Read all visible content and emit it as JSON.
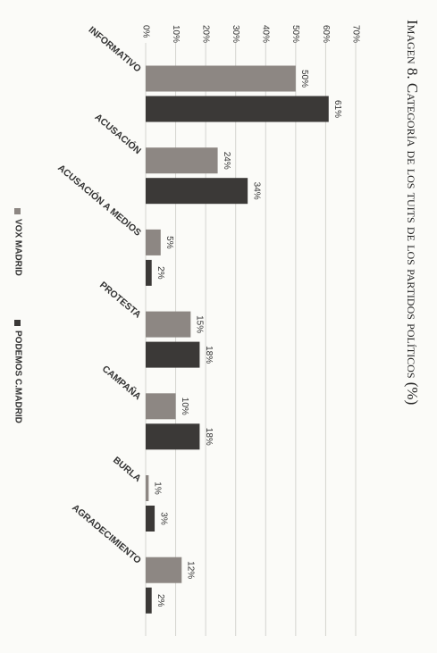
{
  "chart_data": {
    "type": "bar",
    "title": "Imagen 8. Categoría de los tuits de los partidos políticos (%)",
    "categories": [
      "INFORMATIVO",
      "ACUSACIÓN",
      "ACUSACIÓN A MEDIOS",
      "PROTESTA",
      "CAMPAÑA",
      "BURLA",
      "AGRADECIMIENTO"
    ],
    "series": [
      {
        "name": "VOX MADRID",
        "color": "#8d8783",
        "values": [
          50,
          24,
          5,
          15,
          10,
          1,
          12
        ],
        "value_labels": [
          "50%",
          "24%",
          "5%",
          "15%",
          "10%",
          "1%",
          "12%"
        ]
      },
      {
        "name": "PODEMOS C.MADRID",
        "color": "#3b3937",
        "values": [
          61,
          34,
          2,
          18,
          18,
          3,
          2
        ],
        "value_labels": [
          "61%",
          "34%",
          "2%",
          "18%",
          "18%",
          "3%",
          "2%"
        ]
      }
    ],
    "ylim": [
      0,
      70
    ],
    "yticks": [
      {
        "value": 0,
        "label": "0%"
      },
      {
        "value": 10,
        "label": "10%"
      },
      {
        "value": 20,
        "label": "20%"
      },
      {
        "value": 30,
        "label": "30%"
      },
      {
        "value": 40,
        "label": "40%"
      },
      {
        "value": 50,
        "label": "50%"
      },
      {
        "value": 60,
        "label": "60%"
      },
      {
        "value": 70,
        "label": "70%"
      }
    ],
    "grid": true,
    "legend": "bottom"
  }
}
